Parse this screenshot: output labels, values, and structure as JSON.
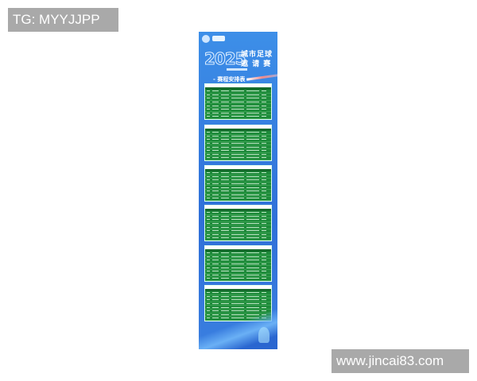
{
  "watermarks": {
    "top_left": "TG: MYYJJPP",
    "bottom_right": "www.jincai83.com"
  },
  "poster": {
    "year": "2025",
    "title_line1": "城市足球",
    "title_line2": "邀 请 赛",
    "section_title": "- 赛程安排表 -",
    "tables_count": 6,
    "colors": {
      "background": "#3d8fe8",
      "table": "#1e8a3a",
      "table_header": "#156b2c"
    }
  }
}
